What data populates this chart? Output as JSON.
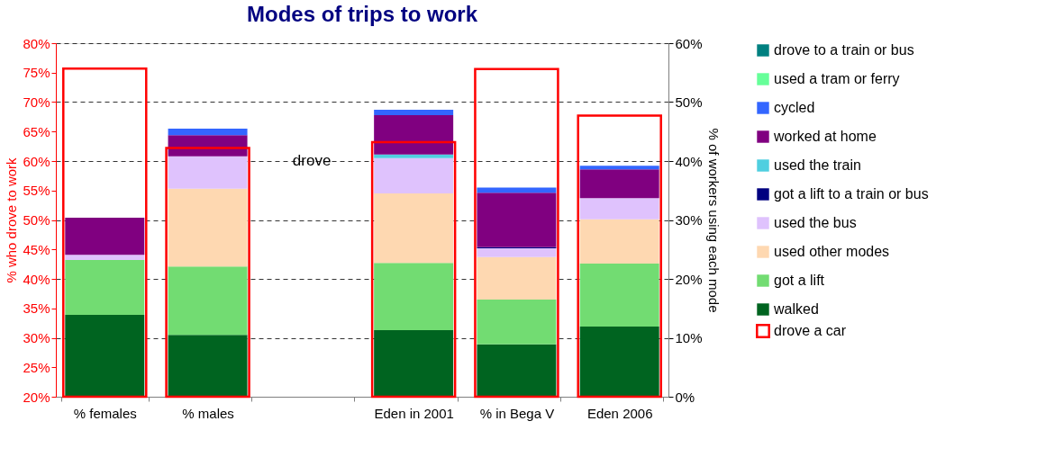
{
  "chart_data": {
    "type": "bar",
    "title": "Modes of trips to work",
    "ylabel": "% who drove to work",
    "y2label": "% of workers using each mode",
    "categories": [
      "% females",
      "% males",
      null,
      "Eden in 2001",
      "% in Bega V",
      "Eden 2006"
    ],
    "stacked": true,
    "legend": "right",
    "grid": "y2",
    "line_style": "dashed",
    "ylim": [
      20,
      80
    ],
    "yticks": [
      {
        "value": 20,
        "label": "20%"
      },
      {
        "value": 25,
        "label": "25%"
      },
      {
        "value": 30,
        "label": "30%"
      },
      {
        "value": 35,
        "label": "35%"
      },
      {
        "value": 40,
        "label": "40%"
      },
      {
        "value": 45,
        "label": "45%"
      },
      {
        "value": 50,
        "label": "50%"
      },
      {
        "value": 55,
        "label": "55%"
      },
      {
        "value": 60,
        "label": "60%"
      },
      {
        "value": 65,
        "label": "65%"
      },
      {
        "value": 70,
        "label": "70%"
      },
      {
        "value": 75,
        "label": "75%"
      },
      {
        "value": 80,
        "label": "80%"
      }
    ],
    "y2lim": [
      0,
      60
    ],
    "y2ticks": [
      {
        "value": 0,
        "label": "0%"
      },
      {
        "value": 10,
        "label": "10%"
      },
      {
        "value": 20,
        "label": "20%"
      },
      {
        "value": 30,
        "label": "30%"
      },
      {
        "value": 40,
        "label": "40%"
      },
      {
        "value": 50,
        "label": "50%"
      },
      {
        "value": 60,
        "label": "60%"
      }
    ],
    "annotations": [
      "drove"
    ],
    "series": [
      {
        "name": "walked",
        "color": "#006420",
        "axis": "y2",
        "values": [
          13.9,
          10.5,
          null,
          11.3,
          8.9,
          11.9
        ]
      },
      {
        "name": "got a lift",
        "color": "#72dc72",
        "axis": "y2",
        "values": [
          9.3,
          11.6,
          null,
          11.4,
          7.6,
          10.7
        ]
      },
      {
        "name": "used other modes",
        "color": "#fed8b1",
        "axis": "y2",
        "values": [
          0,
          13.2,
          null,
          11.8,
          7.2,
          7.5
        ]
      },
      {
        "name": "used the bus",
        "color": "#dfc2fd",
        "axis": "y2",
        "values": [
          0.9,
          5.5,
          null,
          6.0,
          1.5,
          3.6
        ]
      },
      {
        "name": "got a lift to a train or bus",
        "color": "#000080",
        "axis": "y2",
        "values": [
          0,
          0,
          null,
          0,
          0.2,
          0
        ]
      },
      {
        "name": "used the train",
        "color": "#4fcfe0",
        "axis": "y2",
        "values": [
          0,
          0,
          null,
          0.6,
          0,
          0
        ]
      },
      {
        "name": "worked at home",
        "color": "#800080",
        "axis": "y2",
        "values": [
          6.3,
          3.6,
          null,
          6.7,
          9.2,
          4.9
        ]
      },
      {
        "name": "cycled",
        "color": "#3366ff",
        "axis": "y2",
        "values": [
          0,
          1.1,
          null,
          0.9,
          0.9,
          0.6
        ]
      },
      {
        "name": "used a tram or ferry",
        "color": "#66ff99",
        "axis": "y2",
        "values": [
          0,
          0,
          null,
          0,
          0,
          0
        ]
      },
      {
        "name": "drove to a train or bus",
        "color": "#008080",
        "axis": "y2",
        "values": [
          0,
          0,
          null,
          0,
          0,
          0
        ]
      },
      {
        "name": "drove a car",
        "color": "#ff0000",
        "axis": "y",
        "type": "bar",
        "values": [
          75.7,
          62.2,
          null,
          63.2,
          75.6,
          67.7
        ]
      }
    ]
  }
}
